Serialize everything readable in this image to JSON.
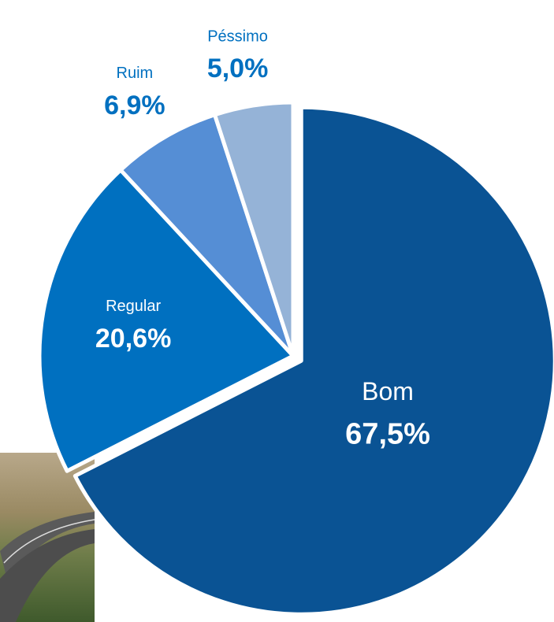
{
  "chart_data": {
    "type": "pie",
    "categories": [
      "Bom",
      "Regular",
      "Ruim",
      "Péssimo"
    ],
    "values": [
      67.5,
      20.6,
      6.9,
      5.0
    ],
    "value_labels": [
      "67,5%",
      "20,6%",
      "6,9%",
      "5,0%"
    ],
    "colors": [
      "#0a5394",
      "#0070c0",
      "#558ed5",
      "#95b3d7"
    ],
    "label_colors": [
      "#ffffff",
      "#ffffff",
      "#0070c0",
      "#0070c0"
    ]
  }
}
